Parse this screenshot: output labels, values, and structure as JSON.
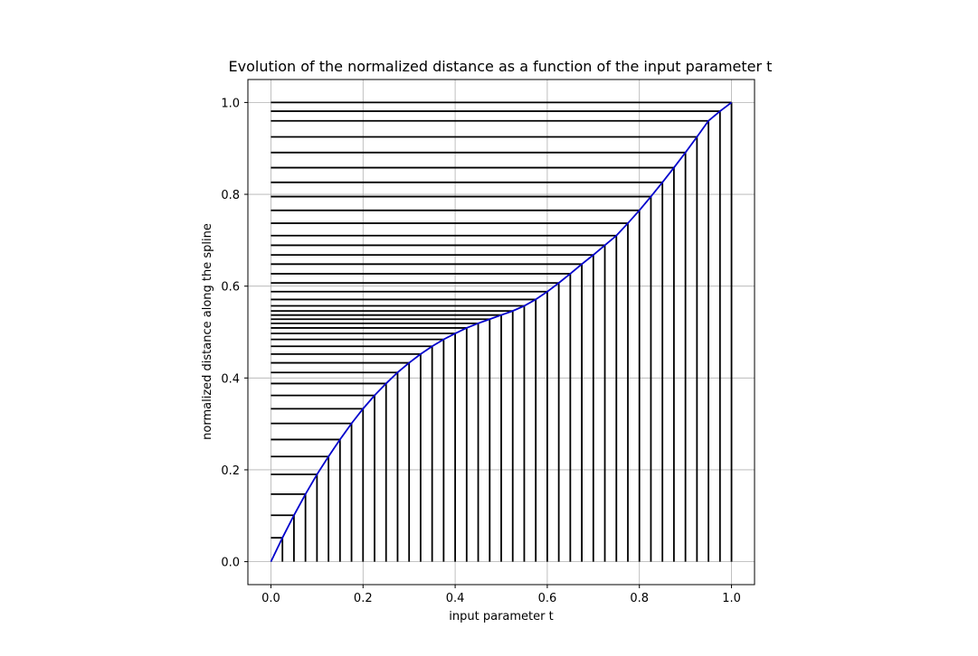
{
  "chart_data": {
    "type": "line",
    "title": "Evolution of the normalized distance as a function of the input parameter t",
    "xlabel": "input parameter t",
    "ylabel": "normalized distance along the spline",
    "xlim": [
      -0.05,
      1.05
    ],
    "ylim": [
      -0.05,
      1.05
    ],
    "xticks": [
      0.0,
      0.2,
      0.4,
      0.6,
      0.8,
      1.0
    ],
    "yticks": [
      0.0,
      0.2,
      0.4,
      0.6,
      0.8,
      1.0
    ],
    "xtick_labels": [
      "0.0",
      "0.2",
      "0.4",
      "0.6",
      "0.8",
      "1.0"
    ],
    "ytick_labels": [
      "0.0",
      "0.2",
      "0.4",
      "0.6",
      "0.8",
      "1.0"
    ],
    "grid": true,
    "series": [
      {
        "color": "#0000cc",
        "x": [
          0.0,
          0.025,
          0.05,
          0.075,
          0.1,
          0.125,
          0.15,
          0.175,
          0.2,
          0.225,
          0.25,
          0.275,
          0.3,
          0.325,
          0.35,
          0.375,
          0.4,
          0.425,
          0.45,
          0.475,
          0.5,
          0.525,
          0.55,
          0.575,
          0.6,
          0.625,
          0.65,
          0.675,
          0.7,
          0.725,
          0.75,
          0.775,
          0.8,
          0.825,
          0.85,
          0.875,
          0.9,
          0.925,
          0.95,
          0.975,
          1.0
        ],
        "y": [
          0.0,
          0.052,
          0.101,
          0.147,
          0.19,
          0.229,
          0.266,
          0.301,
          0.333,
          0.362,
          0.388,
          0.412,
          0.433,
          0.452,
          0.469,
          0.484,
          0.497,
          0.509,
          0.519,
          0.528,
          0.537,
          0.546,
          0.557,
          0.571,
          0.588,
          0.607,
          0.627,
          0.648,
          0.668,
          0.689,
          0.71,
          0.737,
          0.765,
          0.795,
          0.826,
          0.858,
          0.891,
          0.925,
          0.96,
          0.981,
          1.0
        ]
      }
    ]
  }
}
